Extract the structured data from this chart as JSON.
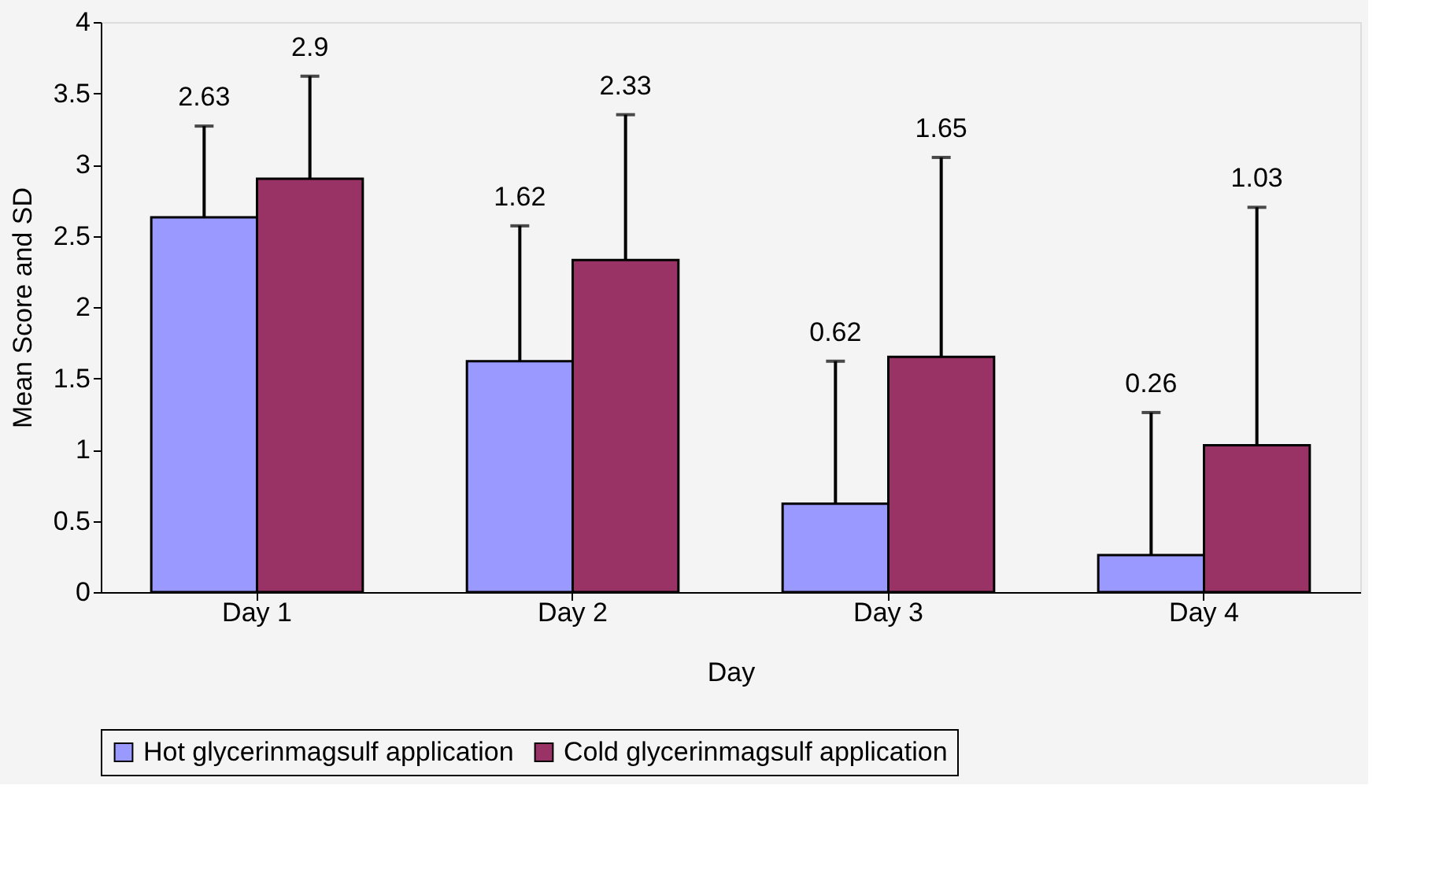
{
  "chart_data": {
    "type": "bar",
    "xlabel": "Day",
    "ylabel": "Mean Score and SD",
    "categories": [
      "Day 1",
      "Day 2",
      "Day 3",
      "Day 4"
    ],
    "series": [
      {
        "name": "Hot glycerinmagsulf application",
        "color": "#9999ff",
        "values": [
          2.63,
          1.62,
          0.62,
          0.26
        ],
        "errors": [
          [
            2.63,
            3.27
          ],
          [
            1.62,
            2.57
          ],
          [
            0.62,
            1.62
          ],
          [
            0.26,
            1.26
          ]
        ]
      },
      {
        "name": "Cold glycerinmagsulf application",
        "color": "#993366",
        "values": [
          2.9,
          2.33,
          1.65,
          1.03
        ],
        "errors": [
          [
            2.9,
            3.62
          ],
          [
            2.33,
            3.35
          ],
          [
            1.65,
            3.05
          ],
          [
            1.03,
            2.7
          ]
        ]
      }
    ],
    "ylim": [
      0,
      4
    ],
    "yticks": [
      0,
      0.5,
      1,
      1.5,
      2,
      2.5,
      3,
      3.5,
      4
    ],
    "grid": false,
    "legend": "bottom",
    "annotations": [
      "2.63",
      "1.62",
      "0.62",
      "0.26",
      "2.9",
      "2.33",
      "1.65",
      "1.03"
    ]
  }
}
